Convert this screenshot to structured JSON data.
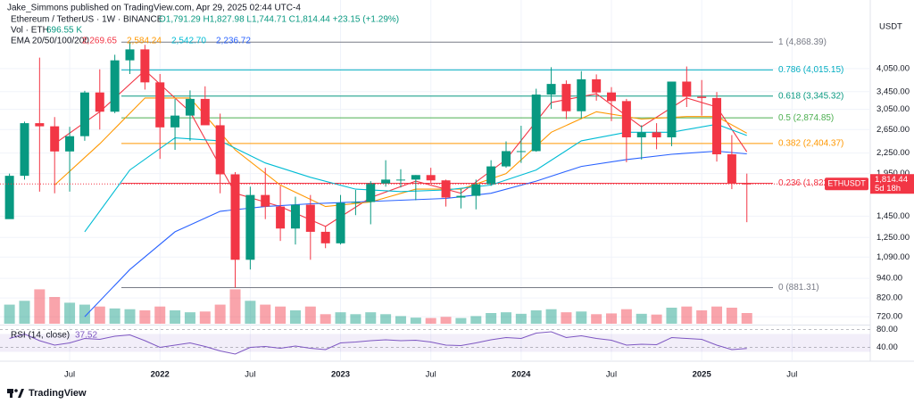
{
  "header": {
    "publisher": "Jake_Simmons published on TradingView.com, Apr 29, 2025 02:44 UTC-4",
    "symbol": "Ethereum / TetherUS · 1W · BINANCE",
    "ohlc": "O1,791.29 H1,827.98 L1,744.71 C1,814.44 +23.15 (+1.29%)",
    "volume_label": "Vol · ETH",
    "volume_value": "696.55 K",
    "ema_label": "EMA 20/50/100/200",
    "rsi_label": "RSI (14, close)",
    "rsi_value": "37.52"
  },
  "footer": {
    "brand": "TradingView"
  },
  "chart_data": {
    "type": "candlestick",
    "unit": "USDT",
    "log_scale": true,
    "grid": true,
    "up_color": "#089981",
    "down_color": "#f23645",
    "xlim": [
      -0.63,
      57.2
    ],
    "xticks": [
      {
        "value": 4,
        "label": "Jul"
      },
      {
        "value": 10,
        "label": "2022"
      },
      {
        "value": 16,
        "label": "Jul"
      },
      {
        "value": 22,
        "label": "2023"
      },
      {
        "value": 28,
        "label": "Jul"
      },
      {
        "value": 34,
        "label": "2024"
      },
      {
        "value": 40,
        "label": "Jul"
      },
      {
        "value": 46,
        "label": "2025"
      },
      {
        "value": 52,
        "label": "Jul"
      }
    ],
    "ylim": [
      677,
      6530
    ],
    "yticks": [
      {
        "value": 4050,
        "label": "4,050.00"
      },
      {
        "value": 3450,
        "label": "3,450.00"
      },
      {
        "value": 3050,
        "label": "3,050.00"
      },
      {
        "value": 2650,
        "label": "2,650.00"
      },
      {
        "value": 2250,
        "label": "2,250.00"
      },
      {
        "value": 1950,
        "label": "1,950.00"
      },
      {
        "value": 1450,
        "label": "1,450.00"
      },
      {
        "value": 1250,
        "label": "1,250.00"
      },
      {
        "value": 1090,
        "label": "1,090.00"
      },
      {
        "value": 940,
        "label": "940.00"
      },
      {
        "value": 820,
        "label": "820.00"
      },
      {
        "value": 720,
        "label": "720.00"
      }
    ],
    "candles": {
      "open": [
        1420,
        1920,
        2770,
        2710,
        2275,
        2530,
        3430,
        3000,
        4290,
        4630,
        3680,
        2690,
        2920,
        3280,
        2730,
        1940,
        1070,
        1680,
        1550,
        1330,
        1570,
        1300,
        1200,
        1590,
        1600,
        1820,
        1870,
        1870,
        1930,
        1860,
        1650,
        1670,
        1810,
        2050,
        2280,
        2280,
        3380,
        3640,
        3010,
        3760,
        3430,
        3230,
        2510,
        2600,
        2510,
        3700,
        3330,
        3300,
        2230,
        1820
      ],
      "high": [
        1950,
        2800,
        4370,
        2890,
        2700,
        3470,
        4030,
        4460,
        4868,
        4780,
        3900,
        3280,
        3480,
        3580,
        2960,
        1970,
        1780,
        2030,
        1790,
        1660,
        1680,
        1350,
        1680,
        1740,
        1850,
        2140,
        2010,
        1930,
        2030,
        1870,
        1750,
        1870,
        2140,
        2440,
        2720,
        3520,
        4090,
        3730,
        3980,
        3890,
        3560,
        3280,
        2730,
        2770,
        3680,
        4110,
        3740,
        3440,
        2550,
        1950
      ],
      "low": [
        1440,
        1870,
        1720,
        1700,
        1720,
        2450,
        2650,
        2970,
        3900,
        3500,
        2160,
        2300,
        2450,
        2780,
        1700,
        881,
        1000,
        1420,
        1220,
        1190,
        1070,
        1160,
        1190,
        1460,
        1370,
        1780,
        1770,
        1620,
        1830,
        1550,
        1530,
        1520,
        1790,
        2030,
        2100,
        2270,
        3060,
        2850,
        2860,
        3240,
        2810,
        2110,
        2150,
        2310,
        2360,
        3100,
        2920,
        2120,
        1750,
        1390
      ],
      "close": [
        1920,
        2770,
        2710,
        2275,
        2530,
        3430,
        3000,
        4290,
        4630,
        3680,
        2690,
        2920,
        3280,
        2730,
        1940,
        1070,
        1680,
        1550,
        1330,
        1570,
        1300,
        1200,
        1590,
        1600,
        1820,
        1870,
        1870,
        1930,
        1860,
        1650,
        1670,
        1810,
        2050,
        2280,
        2280,
        3380,
        3640,
        3010,
        3760,
        3430,
        3230,
        2510,
        2600,
        2510,
        3700,
        3330,
        3300,
        2230,
        1820,
        1814.44
      ]
    },
    "last_price": {
      "value": 1814.44,
      "label": "1,814.44",
      "symbol": "ETHUSDT",
      "countdown": "5d 18h"
    },
    "ema": [
      {
        "color": "#f23645",
        "value_label": "2,269.65",
        "x": [
          3,
          6,
          9,
          12,
          15,
          18,
          21,
          24,
          27,
          30,
          33,
          36,
          39,
          42,
          45,
          47,
          49
        ],
        "values": [
          2400,
          3000,
          4000,
          3000,
          1700,
          1550,
          1350,
          1650,
          1850,
          1700,
          2150,
          3200,
          3400,
          2700,
          3300,
          3100,
          2269.65
        ]
      },
      {
        "color": "#ff9800",
        "value_label": "2,584.24",
        "x": [
          3,
          6,
          9,
          12,
          15,
          18,
          21,
          24,
          27,
          30,
          33,
          36,
          39,
          42,
          45,
          47,
          49
        ],
        "values": [
          1800,
          2400,
          3300,
          3300,
          2300,
          1800,
          1550,
          1600,
          1750,
          1750,
          1950,
          2600,
          3000,
          2850,
          2900,
          2900,
          2584.24
        ]
      },
      {
        "color": "#00bcd4",
        "value_label": "2,542.70",
        "x": [
          5,
          8,
          11,
          14,
          17,
          20,
          23,
          26,
          29,
          32,
          35,
          38,
          41,
          44,
          47,
          49
        ],
        "values": [
          1300,
          2000,
          2500,
          2450,
          2100,
          1900,
          1750,
          1720,
          1740,
          1800,
          2000,
          2450,
          2600,
          2600,
          2750,
          2542.7
        ]
      },
      {
        "color": "#2962ff",
        "value_label": "2,236.72",
        "x": [
          5,
          8,
          11,
          14,
          17,
          20,
          23,
          26,
          29,
          32,
          35,
          38,
          41,
          44,
          47,
          49
        ],
        "values": [
          720,
          1000,
          1300,
          1500,
          1550,
          1580,
          1600,
          1620,
          1640,
          1700,
          1850,
          2050,
          2150,
          2230,
          2280,
          2236.72
        ]
      }
    ],
    "fib": [
      {
        "label": "1 (4,868.39)",
        "value": 4868.39,
        "color": "#787b86"
      },
      {
        "label": "0.786 (4,015.15)",
        "value": 4015.15,
        "color": "#00acc1"
      },
      {
        "label": "0.618 (3,345.32)",
        "value": 3345.32,
        "color": "#089981"
      },
      {
        "label": "0.5 (2,874.85)",
        "value": 2874.85,
        "color": "#4caf50"
      },
      {
        "label": "0.382 (2,404.37)",
        "value": 2404.37,
        "color": "#ff9800"
      },
      {
        "label": "0.236 (1,822.26)",
        "value": 1822.26,
        "color": "#f23645"
      },
      {
        "label": "0 (881.31)",
        "value": 881.31,
        "color": "#787b86"
      }
    ],
    "volume": {
      "vlim": [
        0,
        14000
      ],
      "values": [
        5000,
        6000,
        9000,
        7000,
        5500,
        5000,
        4500,
        4000,
        3800,
        3500,
        4500,
        3500,
        3000,
        3200,
        5000,
        9000,
        6000,
        5000,
        4500,
        3500,
        4500,
        2500,
        3000,
        2500,
        3000,
        2500,
        2000,
        1600,
        1500,
        1800,
        1500,
        2000,
        2800,
        3000,
        2600,
        3500,
        3800,
        3000,
        3200,
        2500,
        2700,
        3800,
        2600,
        2400,
        4200,
        4500,
        3500,
        4500,
        4200,
        2800
      ]
    },
    "rsi": {
      "color": "#7e57c2",
      "rlim": [
        15,
        95
      ],
      "band": [
        30,
        70
      ],
      "ticks": [
        {
          "value": 80,
          "label": "80.00"
        },
        {
          "value": 40,
          "label": "40.00"
        }
      ],
      "values": [
        60,
        70,
        55,
        45,
        50,
        60,
        58,
        65,
        68,
        55,
        40,
        45,
        50,
        42,
        32,
        25,
        40,
        42,
        38,
        43,
        38,
        35,
        50,
        52,
        55,
        57,
        55,
        56,
        52,
        45,
        44,
        50,
        57,
        62,
        60,
        72,
        75,
        62,
        66,
        60,
        56,
        45,
        47,
        46,
        62,
        60,
        58,
        45,
        35,
        37.52
      ]
    }
  }
}
